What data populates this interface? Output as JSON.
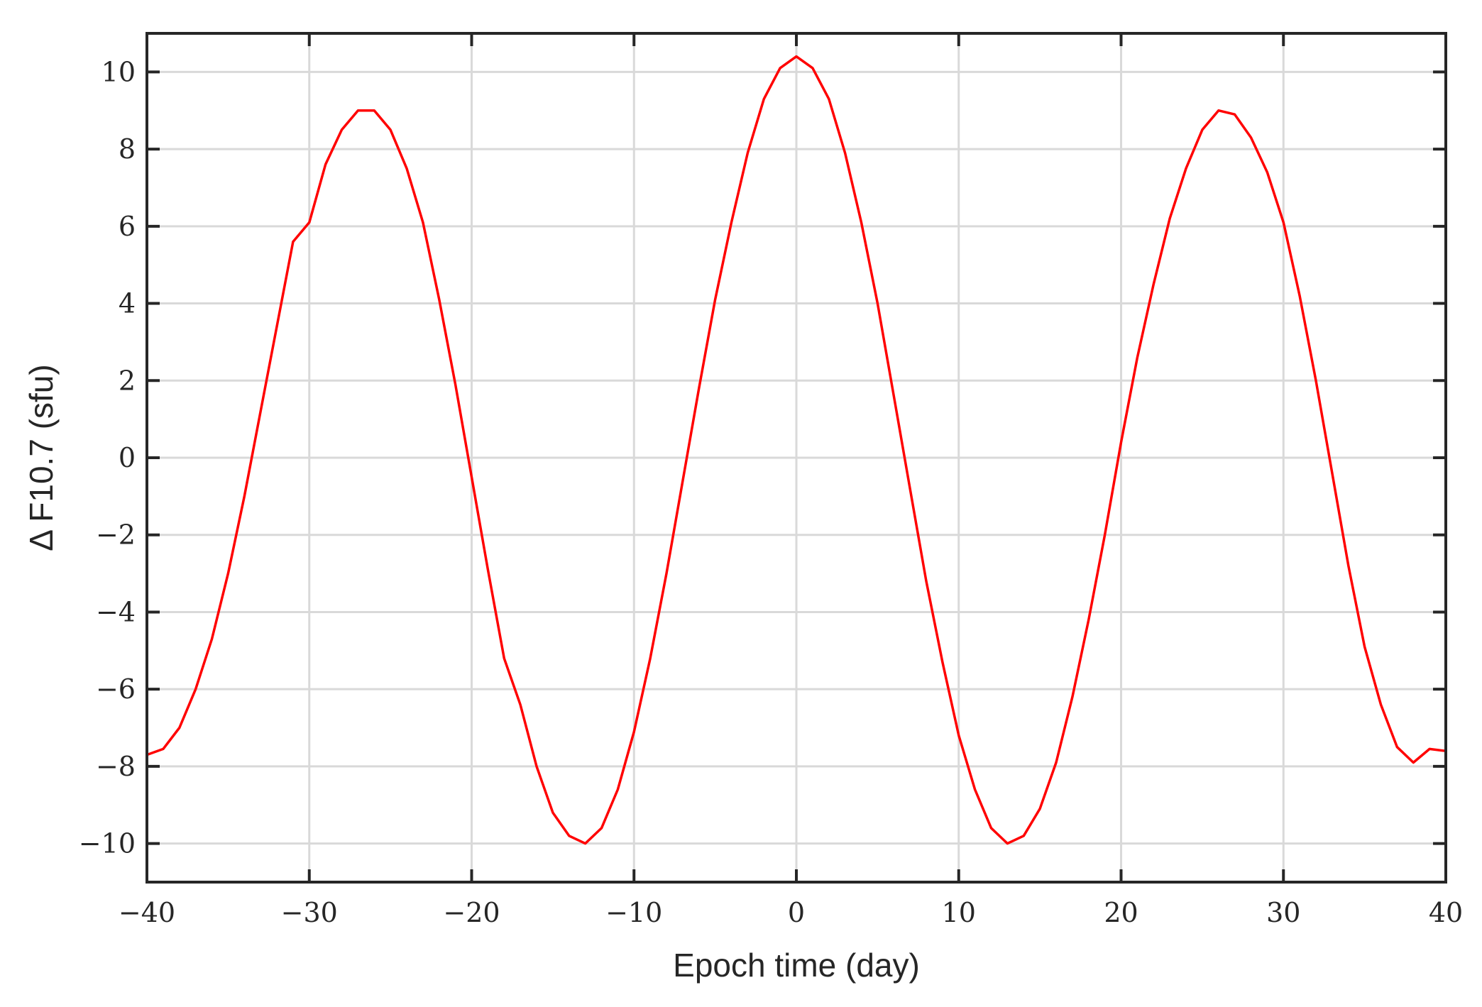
{
  "chart_data": {
    "type": "line",
    "title": "",
    "xlabel": "Epoch time (day)",
    "ylabel": "Δ F10.7 (sfu)",
    "xlim": [
      -40,
      40
    ],
    "ylim": [
      -11,
      11
    ],
    "xticks": [
      -40,
      -30,
      -20,
      -10,
      0,
      10,
      20,
      30,
      40
    ],
    "yticks": [
      -10,
      -8,
      -6,
      -4,
      -2,
      0,
      2,
      4,
      6,
      8,
      10
    ],
    "xtick_labels": [
      "−40",
      "−30",
      "−20",
      "−10",
      "0",
      "10",
      "20",
      "30",
      "40"
    ],
    "ytick_labels": [
      "−10",
      "−8",
      "−6",
      "−4",
      "−2",
      "0",
      "2",
      "4",
      "6",
      "8",
      "10"
    ],
    "grid": true,
    "legend": "none",
    "series": [
      {
        "color": "#ff0000",
        "x": [
          -40,
          -39,
          -38,
          -37,
          -36,
          -35,
          -34,
          -33,
          -32,
          -31,
          -30,
          -29,
          -28,
          -27,
          -26,
          -25,
          -24,
          -23,
          -22,
          -21,
          -20,
          -19,
          -18,
          -17,
          -16,
          -15,
          -14,
          -13,
          -12,
          -11,
          -10,
          -9,
          -8,
          -7,
          -6,
          -5,
          -4,
          -3,
          -2,
          -1,
          0,
          1,
          2,
          3,
          4,
          5,
          6,
          7,
          8,
          9,
          10,
          11,
          12,
          13,
          14,
          15,
          16,
          17,
          18,
          19,
          20,
          21,
          22,
          23,
          24,
          25,
          26,
          27,
          28,
          29,
          30,
          31,
          32,
          33,
          34,
          35,
          36,
          37,
          38,
          39,
          40
        ],
        "y": [
          -7.7,
          -7.55,
          -7.0,
          -6.0,
          -4.7,
          -3.0,
          -1.0,
          1.2,
          3.4,
          5.6,
          6.1,
          7.6,
          8.5,
          9.0,
          9.0,
          8.5,
          7.5,
          6.1,
          4.1,
          1.9,
          -0.5,
          -2.9,
          -5.2,
          -6.4,
          -8.0,
          -9.2,
          -9.8,
          -10.0,
          -9.6,
          -8.6,
          -7.1,
          -5.2,
          -3.0,
          -0.6,
          1.8,
          4.1,
          6.1,
          7.9,
          9.3,
          10.1,
          10.4,
          10.1,
          9.3,
          7.9,
          6.1,
          4.0,
          1.6,
          -0.8,
          -3.2,
          -5.3,
          -7.2,
          -8.6,
          -9.6,
          -10.0,
          -9.8,
          -9.1,
          -7.9,
          -6.2,
          -4.2,
          -2.0,
          0.4,
          2.6,
          4.5,
          6.2,
          7.5,
          8.5,
          9.0,
          8.9,
          8.3,
          7.4,
          6.1,
          4.2,
          2.0,
          -0.4,
          -2.8,
          -4.9,
          -6.4,
          -7.5,
          -7.9,
          -7.55,
          -7.6
        ]
      }
    ]
  }
}
